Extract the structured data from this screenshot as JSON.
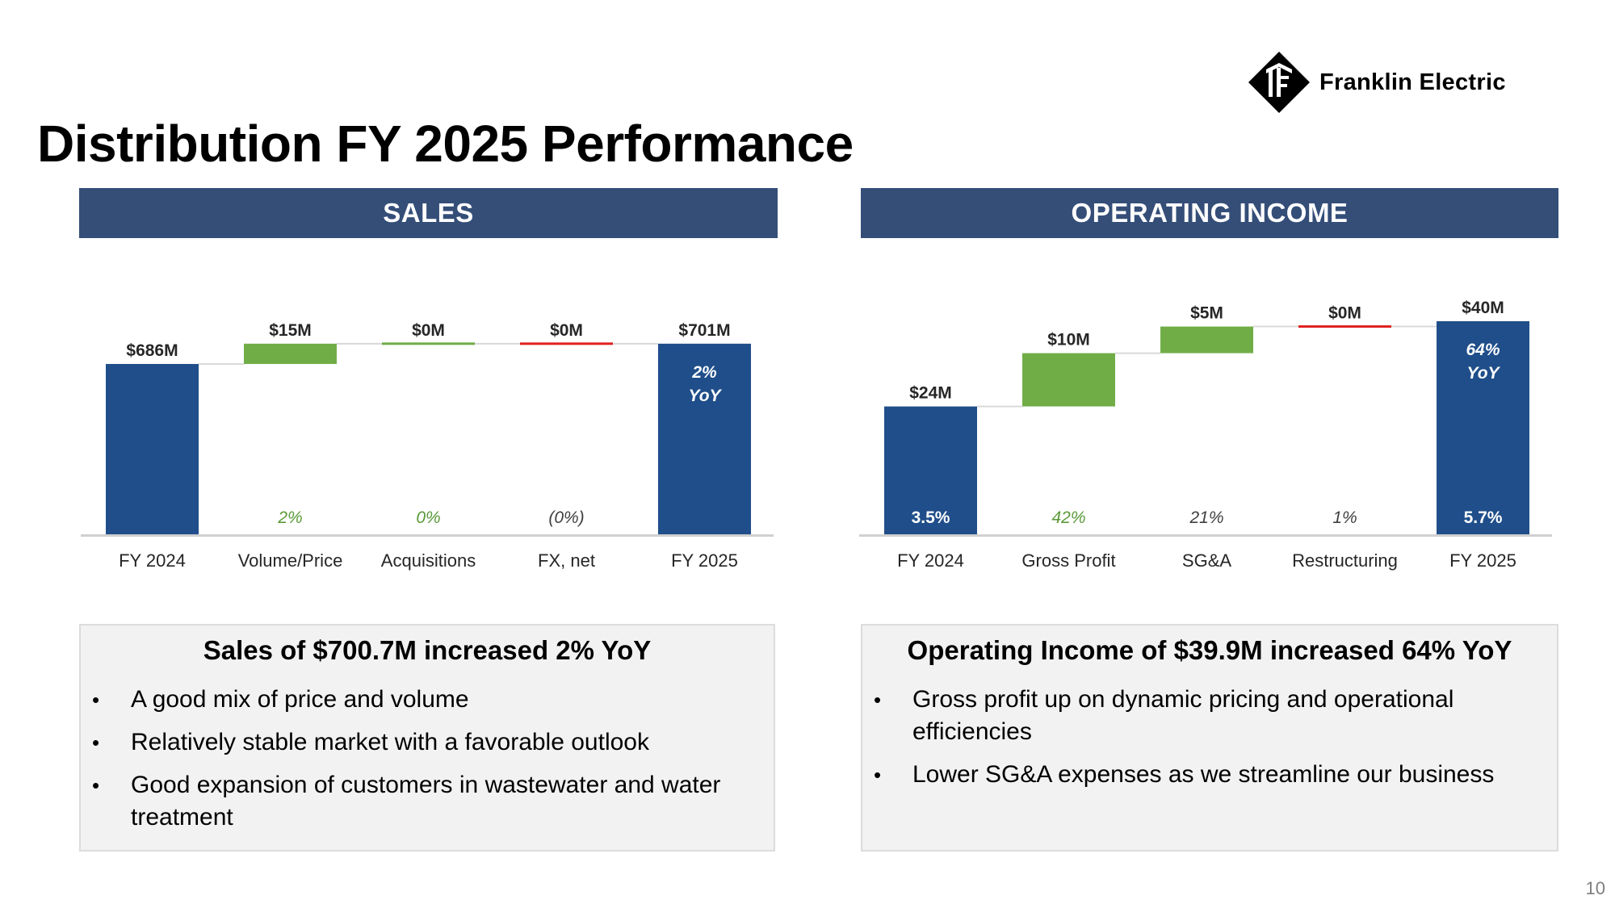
{
  "title": "Distribution FY 2025 Performance",
  "logo": {
    "text": "Franklin Electric",
    "icon": "franklin-electric-diamond-logo-icon"
  },
  "page_number": "10",
  "colors": {
    "header": "#344e78",
    "total_bar": "#1f4e8a",
    "increase_bar": "#70ad47",
    "decrease_bar": "#e02020",
    "connector": "#d9d9d9",
    "axis": "#d0d0d0"
  },
  "sales": {
    "header": "SALES",
    "summary": {
      "title": "Sales of $700.7M increased 2% YoY",
      "bullets": [
        "A good mix of price and volume",
        "Relatively stable market with a favorable outlook",
        "Good expansion of customers in wastewater and water treatment"
      ]
    }
  },
  "operating_income": {
    "header": "OPERATING INCOME",
    "summary": {
      "title": "Operating Income of $39.9M increased 64% YoY",
      "bullets": [
        "Gross profit up on dynamic pricing and operational efficiencies",
        "Lower SG&A expenses  as we streamline our business"
      ]
    }
  },
  "chart_data": [
    {
      "type": "waterfall",
      "title": "SALES",
      "unit": "$M",
      "categories": [
        "FY 2024",
        "Volume/Price",
        "Acquisitions",
        "FX, net",
        "FY 2025"
      ],
      "values": [
        686,
        15,
        0,
        0,
        701
      ],
      "kinds": [
        "total",
        "increase",
        "increase",
        "decrease",
        "total"
      ],
      "value_labels": [
        "$686M",
        "$15M",
        "$0M",
        "$0M",
        "$701M"
      ],
      "pct_labels": [
        "",
        "2%",
        "0%",
        "(0%)",
        ""
      ],
      "inside_labels": [
        "",
        "",
        "",
        "",
        "2%\nYoY"
      ],
      "ylim": [
        560,
        720
      ]
    },
    {
      "type": "waterfall",
      "title": "OPERATING INCOME",
      "unit": "$M",
      "categories": [
        "FY 2024",
        "Gross Profit",
        "SG&A",
        "Restructuring",
        "FY 2025"
      ],
      "values": [
        24,
        10,
        5,
        0,
        40
      ],
      "kinds": [
        "total",
        "increase",
        "increase",
        "decrease",
        "total"
      ],
      "value_labels": [
        "$24M",
        "$10M",
        "$5M",
        "$0M",
        "$40M"
      ],
      "pct_labels": [
        "3.5%",
        "42%",
        "21%",
        "1%",
        "5.7%"
      ],
      "inside_labels": [
        "",
        "",
        "",
        "",
        "64%\nYoY"
      ],
      "ylim": [
        0,
        40.6
      ]
    }
  ]
}
